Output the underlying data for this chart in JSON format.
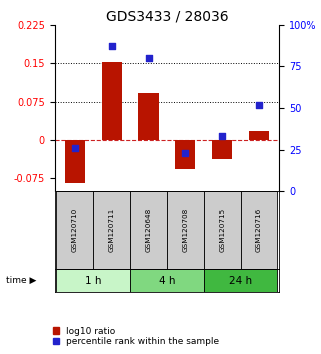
{
  "title": "GDS3433 / 28036",
  "samples": [
    "GSM120710",
    "GSM120711",
    "GSM120648",
    "GSM120708",
    "GSM120715",
    "GSM120716"
  ],
  "log10_ratio": [
    -0.085,
    0.152,
    0.092,
    -0.057,
    -0.038,
    0.018
  ],
  "percentile_rank": [
    26,
    87,
    80,
    23,
    33,
    52
  ],
  "time_groups": [
    {
      "label": "1 h",
      "start": 0,
      "end": 2,
      "color": "#c8f5c8"
    },
    {
      "label": "4 h",
      "start": 2,
      "end": 4,
      "color": "#80d880"
    },
    {
      "label": "24 h",
      "start": 4,
      "end": 6,
      "color": "#40b840"
    }
  ],
  "ylim_left": [
    -0.1,
    0.225
  ],
  "ylim_right": [
    0,
    100
  ],
  "left_yticks": [
    -0.075,
    0,
    0.075,
    0.15,
    0.225
  ],
  "right_yticks": [
    0,
    25,
    50,
    75,
    100
  ],
  "hlines": [
    0.075,
    0.15
  ],
  "bar_color": "#b81400",
  "dot_color": "#2222cc",
  "zero_line_color": "#cc2222",
  "hline_color": "#000000",
  "sample_box_color": "#cccccc",
  "title_fontsize": 10,
  "tick_fontsize": 7,
  "legend_fontsize": 6.5,
  "bar_width": 0.55
}
